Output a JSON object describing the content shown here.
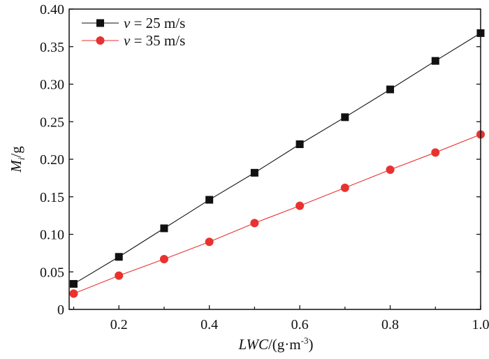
{
  "chart_data": {
    "type": "line",
    "title": "",
    "xlabel": "LWC/(g·m⁻³)",
    "xlabel_parts": {
      "italic": "LWC",
      "rest": "/(g·m",
      "sup": "-3",
      "end": ")"
    },
    "ylabel": "Mi/g",
    "ylabel_parts": {
      "italic": "M",
      "sub": "i",
      "rest": "/g"
    },
    "xlim": [
      0.09,
      1.0
    ],
    "ylim": [
      0,
      0.4
    ],
    "xticks": [
      0.2,
      0.4,
      0.6,
      0.8,
      1.0
    ],
    "xtick_labels": [
      "0.2",
      "0.4",
      "0.6",
      "0.8",
      "1.0"
    ],
    "yticks": [
      0,
      0.05,
      0.1,
      0.15,
      0.2,
      0.25,
      0.3,
      0.35,
      0.4
    ],
    "ytick_labels": [
      "0",
      "0.05",
      "0.10",
      "0.15",
      "0.20",
      "0.25",
      "0.30",
      "0.35",
      "0.40"
    ],
    "grid": false,
    "legend_position": "top-left",
    "x": [
      0.1,
      0.2,
      0.3,
      0.4,
      0.5,
      0.6,
      0.7,
      0.8,
      0.9,
      1.0
    ],
    "series": [
      {
        "name": "v = 25 m/s",
        "legend_italic": "v",
        "legend_rest": " = 25 m/s",
        "color": "#111111",
        "marker": "square",
        "values": [
          0.034,
          0.07,
          0.108,
          0.146,
          0.182,
          0.22,
          0.256,
          0.293,
          0.331,
          0.368
        ]
      },
      {
        "name": "v = 35 m/s",
        "legend_italic": "v",
        "legend_rest": " = 35 m/s",
        "color": "#e8322f",
        "marker": "circle",
        "values": [
          0.021,
          0.045,
          0.067,
          0.09,
          0.115,
          0.138,
          0.162,
          0.186,
          0.209,
          0.233
        ]
      }
    ]
  }
}
